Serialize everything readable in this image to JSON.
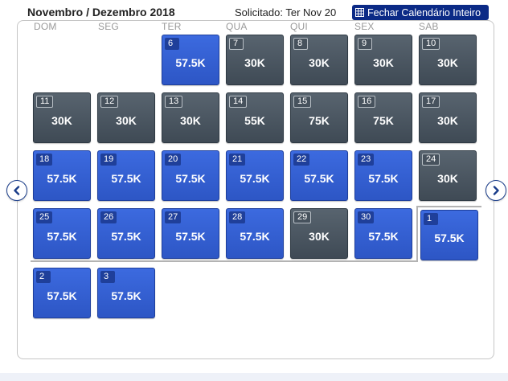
{
  "header": {
    "title": "Novembro / Dezembro 2018",
    "requested": "Solicitado: Ter Nov 20",
    "close_label": "Fechar Calendário Inteiro"
  },
  "weekdays": [
    "DOM",
    "SEG",
    "TER",
    "QUA",
    "QUI",
    "SEX",
    "SAB"
  ],
  "colors": {
    "fare_blue": "#3563d6",
    "fare_gray": "#4b5661",
    "accent": "#0b2a86"
  },
  "days": [
    {
      "day": "6",
      "price": "57.5K",
      "style": "blue"
    },
    {
      "day": "7",
      "price": "30K",
      "style": "gray"
    },
    {
      "day": "8",
      "price": "30K",
      "style": "gray"
    },
    {
      "day": "9",
      "price": "30K",
      "style": "gray"
    },
    {
      "day": "10",
      "price": "30K",
      "style": "gray"
    },
    {
      "day": "11",
      "price": "30K",
      "style": "gray"
    },
    {
      "day": "12",
      "price": "30K",
      "style": "gray"
    },
    {
      "day": "13",
      "price": "30K",
      "style": "gray"
    },
    {
      "day": "14",
      "price": "55K",
      "style": "gray"
    },
    {
      "day": "15",
      "price": "75K",
      "style": "gray"
    },
    {
      "day": "16",
      "price": "75K",
      "style": "gray"
    },
    {
      "day": "17",
      "price": "30K",
      "style": "gray"
    },
    {
      "day": "18",
      "price": "57.5K",
      "style": "blue"
    },
    {
      "day": "19",
      "price": "57.5K",
      "style": "blue"
    },
    {
      "day": "20",
      "price": "57.5K",
      "style": "blue"
    },
    {
      "day": "21",
      "price": "57.5K",
      "style": "blue"
    },
    {
      "day": "22",
      "price": "57.5K",
      "style": "blue"
    },
    {
      "day": "23",
      "price": "57.5K",
      "style": "blue"
    },
    {
      "day": "24",
      "price": "30K",
      "style": "gray"
    },
    {
      "day": "25",
      "price": "57.5K",
      "style": "blue"
    },
    {
      "day": "26",
      "price": "57.5K",
      "style": "blue"
    },
    {
      "day": "27",
      "price": "57.5K",
      "style": "blue"
    },
    {
      "day": "28",
      "price": "57.5K",
      "style": "blue"
    },
    {
      "day": "29",
      "price": "30K",
      "style": "gray"
    },
    {
      "day": "30",
      "price": "57.5K",
      "style": "blue"
    },
    {
      "day": "1",
      "price": "57.5K",
      "style": "blue"
    },
    {
      "day": "2",
      "price": "57.5K",
      "style": "blue"
    },
    {
      "day": "3",
      "price": "57.5K",
      "style": "blue"
    }
  ]
}
